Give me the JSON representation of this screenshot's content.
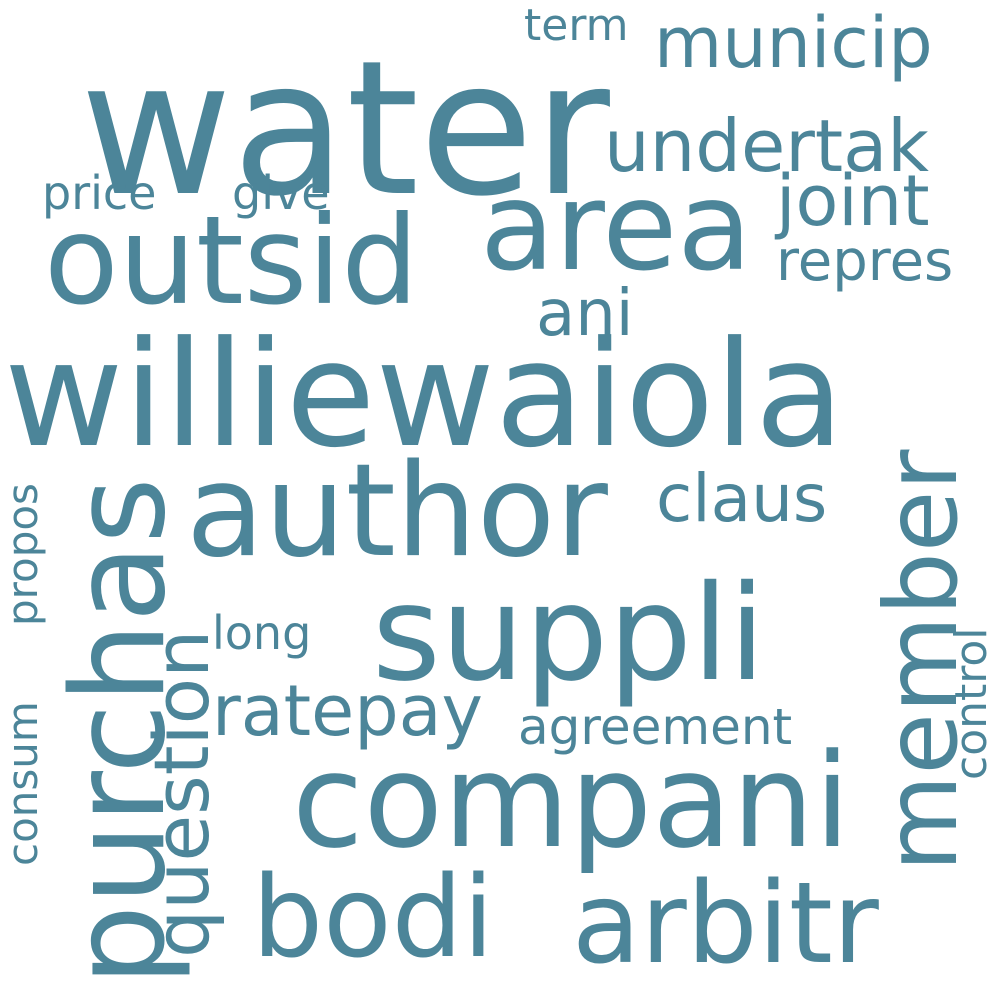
{
  "color": "#4c8599",
  "background": "#ffffff",
  "words": {
    "water": "water",
    "williewaiola": "williewaiola",
    "outsid": "outsid",
    "area": "area",
    "author": "author",
    "purchas": "purchas",
    "suppli": "suppli",
    "compani": "compani",
    "bodi": "bodi",
    "arbitr": "arbitr",
    "member": "member",
    "municip": "municip",
    "undertak": "undertak",
    "joint": "joint",
    "repres": "repres",
    "question": "question",
    "ratepay": "ratepay",
    "claus": "claus",
    "ani": "ani",
    "agreement": "agreement",
    "price": "price",
    "give": "give",
    "term": "term",
    "long": "long",
    "propos": "propos",
    "consum": "consum",
    "control": "control"
  }
}
